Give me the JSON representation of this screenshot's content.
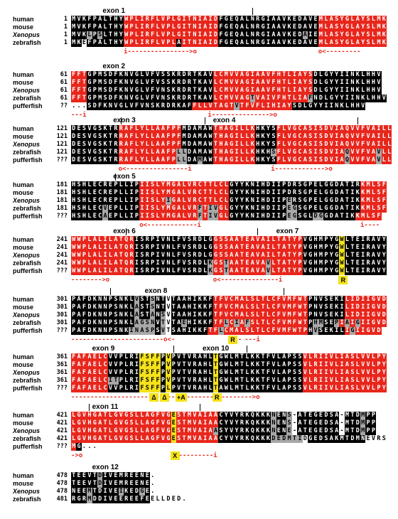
{
  "colors": {
    "conserved": "#000000",
    "membrane": "#e8261c",
    "similar": "#a8a8a8",
    "highlight": "#f4e21a"
  },
  "species_italic": [
    "Xenopus"
  ],
  "blocks": [
    {
      "exons": [
        {
          "label": "exon 1",
          "col": 6
        }
      ],
      "ticks": [
        34
      ],
      "rows": [
        {
          "species": "human",
          "num": "1",
          "seq": "MVKFPALTHYWPLIRFLVPLGITNIAIDFGEQALNRGIAAVKEDAVEMLASYGLAYSLMK",
          "c": "KKKKKKKKKKRRRRRRRRRRRRRRRRRRKKKKKKKKKKKKKKKKKKKRRRRRRRRRRRRR"
        },
        {
          "species": "mouse",
          "num": "1",
          "seq": "MVKFPALTHYWPLIRFLVPLGITNIAIDFGEQALNRGIAAVKEDAVEMLASYGLAYSLMK",
          "c": "KKKKKKKKKKRRRRRRRRRRRRRRRRRRKKKKKKKKKKKKKKKKKKKRRRRRRRRRRRRR"
        },
        {
          "species": "Xenopus",
          "num": "1",
          "seq": "MVKLPSLTHYWPLIRFLVPLGITNIAIDFGEQALNRGIAAVKEDAIEMLASYGLAYSLMK",
          "c": "KKKGKGKKKKRRRRRRRRRRRRRRRRRRKKKKKKKKKKKKKKKKGKKRRRRRRRRRRRRR"
        },
        {
          "species": "zebrafish",
          "num": "1",
          "seq": "MKEFPALTHYWPLIRFLVPLAITNIAIDFGEQALNRGIAAVKEDAVEMLASYGLAYSLMK",
          "c": "KKWKKKKKKKRRRRRRRRRRKRRRRRRRKKKKKKKKKKKKKKKKKKKRRRRRRRRRRRRR"
        }
      ],
      "ann": [
        {
          "col": 10,
          "text": "i---------------->o"
        },
        {
          "col": 47,
          "text": "o<---------"
        }
      ]
    },
    {
      "exons": [
        {
          "label": "exon 2",
          "col": 6
        }
      ],
      "ticks": [],
      "rows": [
        {
          "species": "human",
          "num": "61",
          "seq": "FFTGPMSDFKNVGLVFVSSKRDRTKAVLCMVVAGIAAVFHTLIAYSDLGYYIINKLHHV",
          "c": "RRRKKKKKKKKKKKKKKKKKKKKKKKKRRRRRRRRRRRRRRRRRRRKKKKKKKKKKKKKK"
        },
        {
          "species": "mouse",
          "num": "61",
          "seq": "FFTGPMSDFKNVGLVFVSSKRDRTKAVLCMVVAGIAAVFHTLIAYSDLGYYIINKLHHV",
          "c": "RRRKKKKKKKKKKKKKKKKKKKKKKKKRRRRRRRRRRRRRRRRRRRKKKKKKKKKKKKKK"
        },
        {
          "species": "Xenopus",
          "num": "61",
          "seq": "FFTGPMSDFKNVGLVFVNSKRDRTKAVLCMVVAGIAAVFHTLIAYSDLGYYIINKLHHV",
          "c": "RRRKKKKKKKKKKKKKKKKKKKKKKKKRRRRRRRRRRRRRRRRRRRKKKKKKKKKKKKKK"
        },
        {
          "species": "zebrafish",
          "num": "61",
          "seq": "FFTGPMSDFKNVGLVFVNSKRDRTKAVLCMVVAGTVAIVFHTLIAFNDLGYYIINKLHHV",
          "c": "RRRKKKKKKKKKKKKKKKKKKKKKKKKRRRRRRRGRRRRRRRRRRGKKKKKKKKKKKKKK"
        },
        {
          "species": "pufferfish",
          "num": "??",
          "seq": "...SDFKNVGLVFVNSKRDRKAFFLLVTAGTVTFVFLIHIAYSDLGYYIINKLHHV",
          "c": "WWWKKKKKKKKKKKKKKKKKKKKRRRRRRRRGRRRRRRRRRRKKKKKKKKKKKKKK"
        }
      ],
      "ann": [
        {
          "col": 0,
          "text": "---i"
        },
        {
          "col": 26,
          "text": "i--------------->o"
        }
      ]
    },
    {
      "exons": [
        {
          "label": "exon 3",
          "col": 8
        },
        {
          "label": "exon 4",
          "col": 27
        }
      ],
      "ticks": [
        9,
        25,
        54
      ],
      "rows": [
        {
          "species": "human",
          "num": "121",
          "seq": "DESVGSKTRRAFLYLLAAFPFMDAMAWTHAGILLKHKYSFLVGCASISDVIAQVVFVAILL",
          "c": "KKKKKKKKKRRRRRRRRRRRRKKKKKKRRRRRRRRKKKKRRRRRRRRRRRRRRRRRRRRRR"
        },
        {
          "species": "mouse",
          "num": "121",
          "seq": "DESVGSKTRRAFLYLLAAFPFMDAMAWTHAGILLKHKYSFLVGCASISDVIAQVVFVAILL",
          "c": "KKKKKKKKKRRRRRRRRRRRRKKKKKKRRRRRRRRKKKKRRRRRRRRRRRRRRRRRRRRRR"
        },
        {
          "species": "Xenopus",
          "num": "121",
          "seq": "DESVGSKTRRAFLYLLAAFPFMDAMAWTHAGILLKHKYSFLVGCASISDVIAQVVFVAILL",
          "c": "KKKKKKKKKRRRRRRRRRRRRKKKKKKRRRRRRRRKKKKRRRRRRRRRRRRRRRRRRRRRR"
        },
        {
          "species": "zebrafish",
          "num": "121",
          "seq": "DESVGSKTRRAFLYLLAAFPLLDAMAWTHAGILLKHKHSFLVGCASISDVIAQVVFVAVLL",
          "c": "KKKKKKKKKRRRRRRRRRRRGGKKKKKRRRRRRRRKKKGRRRRRRRRRRRRRGRRRRRGRR"
        },
        {
          "species": "pufferfish",
          "num": "???",
          "seq": "DESVGSKTRRAFLYLLAAFPLLDAMAWTHAGILLKHKYSFLVGCASISDVIAQVVFVAVLL",
          "c": "KKKKKKKKKRRRRRRRRRRRGGKKGKKRRRRRRRRKKKKRRRRRRRRRRRRRGRRRRRGRR"
        }
      ],
      "ann": [
        {
          "col": 9,
          "text": "o<----------------i"
        },
        {
          "col": 38,
          "text": "i------------->o"
        }
      ]
    },
    {
      "exons": [
        {
          "label": "exon 5",
          "col": 8
        }
      ],
      "ticks": [
        8
      ],
      "rows": [
        {
          "species": "human",
          "num": "181",
          "seq": "HSHLECREPLLIPIISLYMGALVRCTTLCLGYYKNIHDIIPDRSGPELGGDATIRKMLSF",
          "c": "KKKKKKKKKKKKKRRRRRRRRRRRRRRRRRKKKKKKKKKKKKKKKKKKKKKKKKKRRRRR"
        },
        {
          "species": "mouse",
          "num": "181",
          "seq": "HSHLECREPLLIPIISLYMGALVRCTTLCLGYYKNIHDIIPDRSGPELGGDATIKKMLSF",
          "c": "KKKKKKKKKKKKKRRRRRRRRRRRRRRRRRKKKKKKKKKKKKKKKKKKKKKKKKKRRRRR"
        },
        {
          "species": "Xenopus",
          "num": "181",
          "seq": "HSHLECREPLLIPIISLYIGALVRCTTLCLGYYKNIHDIIPERSGPELGGDATIKKMLSF",
          "c": "KKKKKKKKKKKKKRRRRRGRRRRRRRRRRRKKKKKKKKKKKGKKKKKKKKKKKKKRRRRR"
        },
        {
          "species": "zebrafish",
          "num": "181",
          "seq": "HSHLECVEPLLIPIISLYMGALVRFTIVGLGYYKNIHDIIPEGSGPELGGDATIKKMLSF",
          "c": "KKKKKKGKKKKKKRRRRRRRRRRRGRGGRRKKKKKKKKKKKGGKKKKKKKKKKKKRRRRR"
        },
        {
          "species": "pufferfish",
          "num": "???",
          "seq": "HSHLECAEPLLIPIISLYMGALVRFTIVGLGYYKNIHDIIPEGSGLDGGDATIKKMLSF",
          "c": "KKKKKKGKKKKKKRRRRRRRRRRRGRGGRRKKKKKKKKKKKGGKKKGGKKKKKKRRRRR"
        }
      ],
      "ann": [
        {
          "col": 13,
          "text": "o<-------------i"
        },
        {
          "col": 55,
          "text": "i----"
        }
      ]
    },
    {
      "exons": [
        {
          "label": "exon 6",
          "col": 8
        },
        {
          "label": "exon 7",
          "col": 39
        }
      ],
      "ticks": [
        10,
        35
      ],
      "rows": [
        {
          "species": "human",
          "num": "241",
          "seq": "WWPLALILATQRISRPIVNLFVSRDLGGSSAATEAVAILTATYPVGHMPYGWLTEIRAVY",
          "c": "RRRRRRRRRRRRKKKKKKKKKKKKKKKRRRRRRRRRRRRRRRRRKKKKKKKYKKKKKKKK"
        },
        {
          "species": "mouse",
          "num": "241",
          "seq": "WWPLALILATQRISRPIVNLFVSRDLGGSSAATEAVAILTATYPVGHMPYGWLTEIRAVY",
          "c": "RRRRRRRRRRRRKKKKKKKKKKKKKKKRRRRRRRRRRRRRRRRRKKKKKKKYKKKKKKKK"
        },
        {
          "species": "Xenopus",
          "num": "241",
          "seq": "WWPLALILATQRISRPIVNLFVSRDLGGSSAATEAVAILTATYPVGHMPYGWLTEIRAVY",
          "c": "RRRRRRRRRRRRKKKKKKKKKKKKKKKRRRRRRRRRRRRRRRRRKKKKKKKYKKKKKKKK"
        },
        {
          "species": "zebrafish",
          "num": "241",
          "seq": "WWPLALILATQRISRPIVNLFVSRDLKGSTAATEAVAVLTATYPVGHMPYGWLTEIRAVY",
          "c": "RRRRRRRRRRRRKKKKKKKKKKKKKKGRRGRRRRRRRGRRRRRRKKKKKKKYKKKKKKKK"
        },
        {
          "species": "pufferfish",
          "num": "???",
          "seq": "WWPLALILATQRISRPIVNLFVSRDLKGSTAATEAVAVLTATYPVGHMPYGWLTEIRAVY",
          "c": "RRRRRRRRRRRRKKKKKKKKKKKKKKGRRGRRRRRRRGRRRRRRKKKKKKKYKKKKKKKK"
        }
      ],
      "ann": [
        {
          "col": 0,
          "text": "-------->o"
        },
        {
          "col": 27,
          "text": "o<---------------i"
        }
      ],
      "marks": [
        {
          "col": 51,
          "text": "R"
        }
      ]
    },
    {
      "exons": [
        {
          "label": "exon 8",
          "col": 14
        }
      ],
      "ticks": [
        7,
        40
      ],
      "rows": [
        {
          "species": "human",
          "num": "301",
          "seq": "PAFDKNNPSNKLVSTSNTVTAAHIKKFTFVCMALSLTLCFVMFWTPNVSEKILIDIIGVD",
          "c": "KKKKKKKKKKKKGKKGKKWKKKKKKKKRRRRRRRRRRRRRRRRRRKKKKKKKRRRRRRRR"
        },
        {
          "species": "mouse",
          "num": "301",
          "seq": "PAFDKNNPSNKLASTSNTVTAAHIKKFTFVCMALSLTLCFVMFWTPNVSEKILIDIIGVD",
          "c": "KKKKKKKKKKKKGKKGKKWKKKKKKKKRRRRRRRRRRRRRRRRRRKKKKKKKRRRRRRRR"
        },
        {
          "species": "Xenopus",
          "num": "301",
          "seq": "PAFDKNNPSNKLASTANSVTAAHIKKFTFVCMALSLTLCFVMFWTPNVSEKILIDIIGVD",
          "c": "KKKKKKKKKKKKGKKGKGWKKKKKKKKRRRRRRRRRRRRRRRRRRKKKKKKKRRRRRRRR"
        },
        {
          "species": "zebrafish",
          "num": "301",
          "seq": "PAFDKNNPSNKLAGSNVTVTAEHIKKFTFLCIAFSLTLCFVMFWTPHMSEPIAIGIIGVD",
          "c": "KKKKKKKKKKKKGGGGKGWKKGKKKKKRRGRGRGRRRRRRRRRRRKGGKKGRGRGRRRRR"
        },
        {
          "species": "pufferfish",
          "num": "???",
          "seq": "PAFDKNNPSNKINASPSVTSAHIKKFTFLCMALSLTLCFVMFWTPHVSEKILIGIIGVD",
          "c": "KKKKKKKKKKKGGGGGKGWKKKKKKKRRGRRRRRRRRRRRRRRRRKGKKKKKRGRRRRRR"
        }
      ],
      "ann": [
        {
          "col": 0,
          "text": "------------------------o<-"
        },
        {
          "col": 31,
          "text": "--"
        },
        {
          "col": 33,
          "text": "---i"
        }
      ],
      "marks": [
        {
          "col": 30,
          "text": "R"
        }
      ]
    },
    {
      "exons": [
        {
          "label": "exon 9",
          "col": 4
        },
        {
          "label": "exon 10",
          "col": 25
        }
      ],
      "ticks": [
        19,
        33
      ],
      "rows": [
        {
          "species": "human",
          "num": "361",
          "seq": "FAFAELCVVPLRIFSFFPVPVTVRAHLTGWLMTLKKTFVLAPSSVLRIIVLIASLVVLPY",
          "c": "RRRRRRRKKKKKKYYYYKYKKKKKKKKYKKKKKKKKKKKKKKKKRRRRRRRRRRRRRRRR"
        },
        {
          "species": "mouse",
          "num": "361",
          "seq": "FAFAELCVVPLRIFSFFPVPVTVRAHLTGWLMTLKKTFVLAPSSVLRIIVLIASLVVLPY",
          "c": "RRRRRRRKKKKKKYYYYKYKKKKKKKKYKKKKKKKKKKKKKKKKRRRRRRRRRRRRRRRR"
        },
        {
          "species": "Xenopus",
          "num": "361",
          "seq": "FAFAELCVVPLRIFSFFPVPVTVRAHLTGWLMTLKKTFVLAPSSVLRIIVLIASLVVLPY",
          "c": "RRRRRRRKKKKKKYYYYKYKKKKKKKKYKKKKKKKKKKKKKKKKRRRRRRRRRRRRRRRR"
        },
        {
          "species": "zebrafish",
          "num": "361",
          "seq": "FAFAELCITPLRIFSFFPVPVTVRAHLTGWLMTLKKTFVLAPSSVLRIIVLIASLVVLPY",
          "c": "RRRRRRRGGKKKKYYYYKYKKKKKKKKYKKKKKKKKKKKKKKKKRRRRRRRRRRRRRRRR"
        },
        {
          "species": "pufferfish",
          "num": "???",
          "seq": "FAFAELCVVPLRIFSFFPLPVTVRAHLTAWLMTLKKTFVLAPSSVLRIIVLIASLVVLPY",
          "c": "RRRRRRRKKKKKKYYYYKYKKKKKKKKYKKKKKKKKKKKKKKKKRRRRRRRRRRRRRRRR"
        }
      ],
      "ann": [
        {
          "col": 0,
          "text": "----------------------------------------------->o"
        }
      ],
      "marks": [
        {
          "col": 15,
          "text": "Δ"
        },
        {
          "col": 17,
          "text": "Δ"
        },
        {
          "col": 20,
          "text": "+A"
        },
        {
          "col": 27,
          "text": "R"
        }
      ]
    },
    {
      "exons": [
        {
          "label": "exon 11",
          "col": 4
        }
      ],
      "ticks": [
        3,
        24
      ],
      "rows": [
        {
          "species": "human",
          "num": "421",
          "seq": "LGVHGATLGVGSLLAGFVGESTMVAIAACYVYRKQKKKNENS-ATEGEDSA-MTDMPP",
          "c": "RRRRRRRRRRRRRRRRRRRYRRRRRRRRKKKKKKKKKKGKKGWKKKKKKKKWKKKGKK"
        },
        {
          "species": "mouse",
          "num": "421",
          "seq": "LGVHGATLGVGSLLAGFVGESTMVAIAACYVYRKQKKKNENS-ATEGEDSA-MTDMPP",
          "c": "RRRRRRRRRRRRRRRRRRRYRRRRRRRRKKKKKKKKKKGKKGWKKKKKKKKWKKKGKK"
        },
        {
          "species": "Xenopus",
          "num": "421",
          "seq": "LGVHGATLGVGSLLAGFVGESTMVAIAASYVYRKQKKKNENE-ATEGEDSA-MTDMPP",
          "c": "RRRRRRRRRRRRRRRRRRRYRRRRRRRGKKKKKKKKKKGKKGWKKKKKKKKWKKKGKK"
        },
        {
          "species": "zebrafish",
          "num": "421",
          "seq": "LGVHGATLGVGSLLAGFVGESTMVAIAACYVYRKQKKKDEDMTIDGEDSAKMTDMNEVRS",
          "c": "RRRRRRRRRRRRRRRRRRRYRRRRRRRRKKKKKKKKKKGGGGGGWKKKKKKKKKKKWWWW"
        },
        {
          "species": "pufferfish",
          "num": "???",
          "seq": "MG...",
          "c": "RKWWW"
        }
      ],
      "ann": [
        {
          "col": 0,
          "text": "->o"
        },
        {
          "col": 19,
          "text": "o<---------i"
        }
      ],
      "marks": [
        {
          "col": 19,
          "text": "X"
        }
      ]
    },
    {
      "exons": [
        {
          "label": "exon 12",
          "col": 4
        }
      ],
      "ticks": [],
      "rows": [
        {
          "species": "human",
          "num": "478",
          "seq": "TEEVTDIVEMREENE.",
          "c": "KKKKKGKKKKKKKKKW"
        },
        {
          "species": "mouse",
          "num": "478",
          "seq": "TEEVTDIVEMREENE.",
          "c": "KKKKKGKKKKKKKKKW"
        },
        {
          "species": "Xenopus",
          "num": "478",
          "seq": "NEEMTDIVEIKEDGE.",
          "c": "KKKGKKKKKGKKKGKW"
        },
        {
          "species": "zebrafish",
          "num": "481",
          "seq": "RGRMDDIVEEREEFEELLDED.",
          "c": "KKKGKKKKKKKKKKKWWWWWWW"
        }
      ],
      "ann": []
    }
  ]
}
